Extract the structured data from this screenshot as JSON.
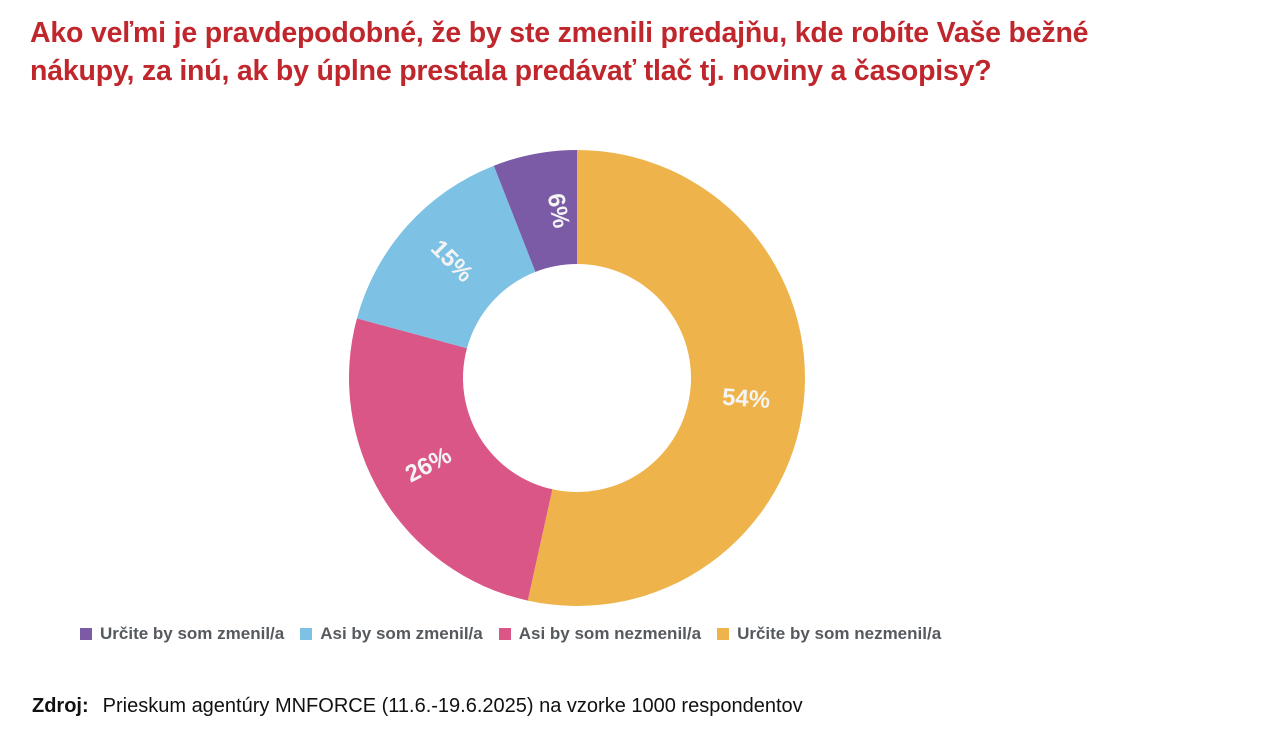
{
  "title": {
    "line1": "Ako veľmi je pravdepodobné, že by ste zmenili predajňu, kde robíte Vaše bežné",
    "line2": "nákupy, za inú, ak by úplne prestala predávať tlač tj. noviny a časopisy?"
  },
  "colors": {
    "title": "#c0272d",
    "urcite_zmenil": "#7b5ba6",
    "asi_zmenil": "#7dc1e4",
    "asi_nezmenil": "#d95687",
    "urcite_nezmenil": "#eeb44b"
  },
  "legend": [
    {
      "label": "Určite by som zmenil/a",
      "color": "#7b5ba6"
    },
    {
      "label": "Asi by som zmenil/a",
      "color": "#7dc1e4"
    },
    {
      "label": "Asi by som nezmenil/a",
      "color": "#d95687"
    },
    {
      "label": "Určite by som nezmenil/a",
      "color": "#eeb44b"
    }
  ],
  "labels": {
    "urcite_zmenil": "6%",
    "asi_zmenil": "15%",
    "asi_nezmenil": "26%",
    "urcite_nezmenil": "54%"
  },
  "source": {
    "label": "Zdroj:",
    "text": "Prieskum agentúry MNFORCE (11.6.-19.6.2025) na vzorke 1000 respondentov"
  },
  "chart_data": {
    "type": "pie",
    "subtype": "donut",
    "title": "Ako veľmi je pravdepodobné, že by ste zmenili predajňu, kde robíte Vaše bežné nákupy, za inú, ak by úplne prestala predávať tlač tj. noviny a časopisy?",
    "categories": [
      "Určite by som zmenil/a",
      "Asi by som zmenil/a",
      "Asi by som nezmenil/a",
      "Určite by som nezmenil/a"
    ],
    "values": [
      6,
      15,
      26,
      54
    ],
    "unit": "%",
    "colors": [
      "#7b5ba6",
      "#7dc1e4",
      "#d95687",
      "#eeb44b"
    ],
    "legend_position": "bottom",
    "data_labels": [
      "6%",
      "15%",
      "26%",
      "54%"
    ],
    "source": "Prieskum agentúry MNFORCE (11.6.-19.6.2025) na vzorke 1000 respondentov"
  }
}
